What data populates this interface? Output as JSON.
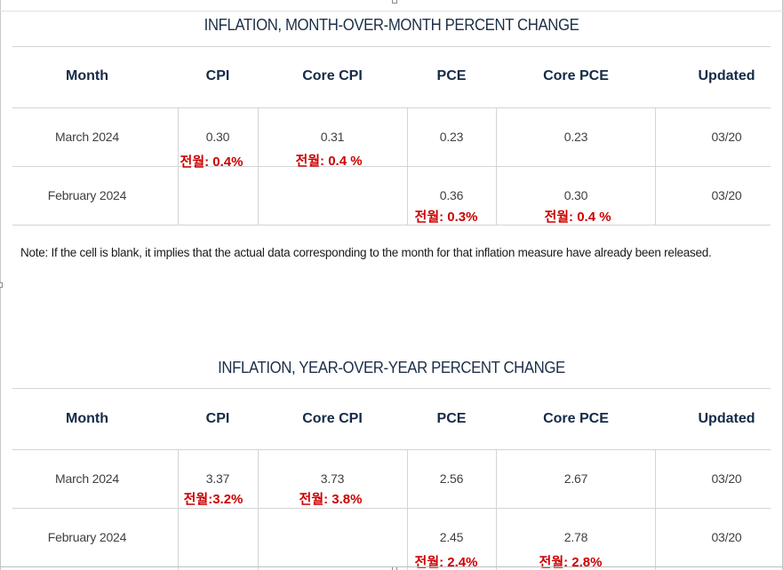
{
  "columns": [
    "Month",
    "CPI",
    "Core CPI",
    "PCE",
    "Core PCE",
    "Updated"
  ],
  "mom": {
    "title": "INFLATION, MONTH-OVER-MONTH PERCENT CHANGE",
    "rows": [
      {
        "month": "March 2024",
        "cpi": "0.30",
        "core_cpi": "0.31",
        "pce": "0.23",
        "core_pce": "0.23",
        "updated": "03/20",
        "prev_cpi": "전월: 0.4%",
        "prev_core_cpi": "전월: 0.4 %",
        "prev_pce": "",
        "prev_core_pce": ""
      },
      {
        "month": "February 2024",
        "cpi": "",
        "core_cpi": "",
        "pce": "0.36",
        "core_pce": "0.30",
        "updated": "03/20",
        "prev_cpi": "",
        "prev_core_cpi": "",
        "prev_pce": "전월: 0.3%",
        "prev_core_pce": "전월: 0.4 %"
      }
    ]
  },
  "note": "Note: If the cell is blank, it implies that the actual data corresponding to the month for that inflation measure have already been released.",
  "yoy": {
    "title": "INFLATION, YEAR-OVER-YEAR PERCENT CHANGE",
    "rows": [
      {
        "month": "March 2024",
        "cpi": "3.37",
        "core_cpi": "3.73",
        "pce": "2.56",
        "core_pce": "2.67",
        "updated": "03/20",
        "prev_cpi": "전월:3.2%",
        "prev_core_cpi": "전월: 3.8%",
        "prev_pce": "",
        "prev_core_pce": ""
      },
      {
        "month": "February 2024",
        "cpi": "",
        "core_cpi": "",
        "pce": "2.45",
        "core_pce": "2.78",
        "updated": "03/20",
        "prev_cpi": "",
        "prev_core_cpi": "",
        "prev_pce": "전월: 2.4%",
        "prev_core_pce": "전월: 2.8%"
      }
    ]
  },
  "colors": {
    "header_text": "#142a46",
    "title_text": "#1c2f48",
    "annotation": "#cc0000",
    "grid": "#d4d4d4"
  }
}
